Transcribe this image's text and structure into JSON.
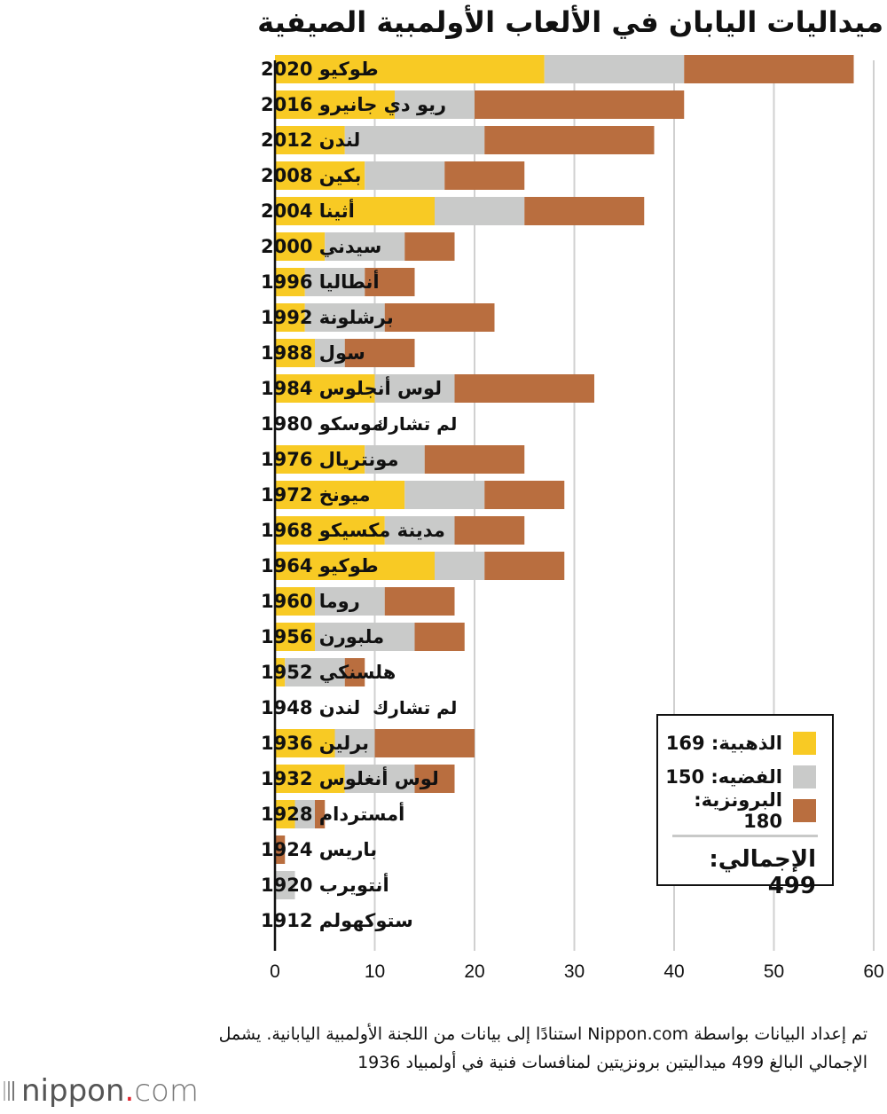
{
  "title": "ميداليات اليابان في الألعاب الأولمبية الصيفية",
  "chart_data": {
    "type": "bar",
    "orientation": "horizontal",
    "stacked": true,
    "title": "ميداليات اليابان في الألعاب الأولمبية الصيفية",
    "xlabel": "",
    "ylabel": "",
    "xlim": [
      0,
      60
    ],
    "x_ticks": [
      0,
      10,
      20,
      30,
      40,
      50,
      60
    ],
    "grid": true,
    "legend_position": "bottom-right",
    "categories": [
      "طوكيو 2020",
      "ريو دي جانيرو 2016",
      "لندن 2012",
      "بكين 2008",
      "أثينا 2004",
      "سيدني 2000",
      "أنطاليا 1996",
      "برشلونة 1992",
      "سول 1988",
      "لوس أنجلوس 1984",
      "موسكو 1980",
      "مونتريال 1976",
      "ميونخ 1972",
      "مدينة مكسيكو 1968",
      "طوكيو 1964",
      "روما 1960",
      "ملبورن 1956",
      "هلسنكي 1952",
      "لندن 1948",
      "برلين 1936",
      "لوس أنغلوس 1932",
      "أمستردام 1928",
      "باريس 1924",
      "أنتويرب 1920",
      "ستوكهولم 1912"
    ],
    "series": [
      {
        "name": "الذهبية",
        "color": "#f8ca24",
        "values": [
          27,
          12,
          7,
          9,
          16,
          5,
          3,
          3,
          4,
          10,
          0,
          9,
          13,
          11,
          16,
          4,
          4,
          1,
          0,
          6,
          7,
          2,
          0,
          0,
          0
        ]
      },
      {
        "name": "الفضيه",
        "color": "#c9cac9",
        "values": [
          14,
          8,
          14,
          8,
          9,
          8,
          6,
          8,
          3,
          8,
          0,
          6,
          8,
          7,
          5,
          7,
          10,
          6,
          0,
          4,
          7,
          2,
          0,
          2,
          0
        ]
      },
      {
        "name": "البرونزية",
        "color": "#b96e3f",
        "values": [
          17,
          21,
          17,
          8,
          12,
          5,
          5,
          11,
          7,
          14,
          0,
          10,
          8,
          7,
          8,
          7,
          5,
          2,
          0,
          10,
          4,
          1,
          1,
          0,
          0
        ]
      }
    ],
    "annotations": [
      {
        "category": "موسكو 1980",
        "text": "لم تشارك"
      },
      {
        "category": "لندن 1948",
        "text": "لم تشارك"
      }
    ]
  },
  "legend": {
    "gold_label": "الذهبية: 169",
    "silver_label": "الفضيه: 150",
    "bronze_label": "البرونزية: 180",
    "total_label": "الإجمالي: 499",
    "gold_color": "#f8ca24",
    "silver_color": "#c9cac9",
    "bronze_color": "#b96e3f"
  },
  "note": "تم إعداد البيانات بواسطة Nippon.com استنادًا إلى بيانات من اللجنة الأولمبية اليابانية. يشمل الإجمالي البالغ 499 ميداليتين برونزيتين لمنافسات فنية في أولمبياد 1936",
  "logo": {
    "word": "nippon",
    "dot": ".",
    "suffix": "com"
  }
}
